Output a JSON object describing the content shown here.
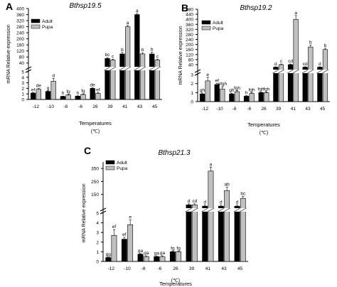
{
  "chart_data": [
    {
      "type": "bar",
      "panel_letter": "A",
      "title": "Bthsp19.5",
      "xlabel": "Temperatures",
      "xunit": "(℃)",
      "ylabel": "mRNA Relative expression",
      "categories": [
        "-12",
        "-10",
        "-8",
        "-6",
        "26",
        "39",
        "41",
        "43",
        "45"
      ],
      "legend": {
        "position": "top-left"
      },
      "axis": {
        "lower": {
          "range": [
            0,
            5
          ],
          "ticks": [
            0,
            1,
            2,
            3,
            4,
            5
          ]
        },
        "upper": {
          "range": [
            20,
            400
          ],
          "ticks": [
            40,
            80,
            120,
            160,
            200,
            240,
            280,
            320,
            360,
            400
          ]
        }
      },
      "series": [
        {
          "name": "Adult",
          "color": "#000000",
          "values": [
            1.15,
            1.45,
            0.55,
            0.6,
            2.0,
            70,
            100,
            360,
            100
          ],
          "errors": [
            0.1,
            0.1,
            0.06,
            0.06,
            0.1,
            6,
            10,
            8,
            12
          ],
          "letters": [
            "ef",
            "g",
            "h",
            "h",
            "de",
            "bc",
            "b",
            "a",
            "b"
          ]
        },
        {
          "name": "Pupa",
          "color": "#c0c0c0",
          "values": [
            1.85,
            3.3,
            0.8,
            0.9,
            1.1,
            60,
            280,
            100,
            60
          ],
          "errors": [
            0.12,
            0.5,
            0.1,
            0.1,
            0.15,
            5,
            8,
            8,
            5
          ],
          "letters": [
            "de",
            "d",
            "fg",
            "fg",
            "ef",
            "c",
            "a",
            "b",
            "c"
          ]
        }
      ]
    },
    {
      "type": "bar",
      "panel_letter": "B",
      "title": "Bthsp19.2",
      "xlabel": "Temperatures",
      "xunit": "(℃)",
      "ylabel": "mRNA Relative expression",
      "categories": [
        "-12",
        "-10",
        "-8",
        "-6",
        "26",
        "39",
        "41",
        "43",
        "45"
      ],
      "legend": {
        "position": "top-left"
      },
      "axis": {
        "lower": {
          "range": [
            0,
            3
          ],
          "ticks": [
            0,
            1,
            2,
            3
          ]
        },
        "upper": {
          "range": [
            6,
            480
          ],
          "ticks": [
            40,
            80,
            120,
            160,
            200,
            240,
            280,
            320,
            360,
            400,
            440,
            480
          ]
        }
      },
      "series": [
        {
          "name": "Adult",
          "color": "#000000",
          "values": [
            0.85,
            1.9,
            0.85,
            0.6,
            1.0,
            20,
            40,
            20,
            20
          ],
          "errors": [
            0.1,
            0.1,
            0.08,
            0.06,
            0.05,
            3,
            5,
            3,
            3
          ],
          "letters": [
            "gh",
            "ef",
            "gh",
            "h",
            "fgh",
            "d",
            "cd",
            "cd",
            "d"
          ]
        },
        {
          "name": "Pupa",
          "color": "#c0c0c0",
          "values": [
            2.3,
            1.4,
            1.1,
            0.9,
            1.0,
            40,
            400,
            180,
            160
          ],
          "errors": [
            0.4,
            0.25,
            0.1,
            0.1,
            0.08,
            5,
            30,
            15,
            10
          ],
          "letters": [
            "e",
            "efgh",
            "fgh",
            "fgh",
            "fgh",
            "c",
            "a",
            "b",
            "b"
          ]
        }
      ]
    },
    {
      "type": "bar",
      "panel_letter": "C",
      "title": "Bthsp21.3",
      "xlabel": "Temperatures",
      "xunit": "(℃)",
      "ylabel": "mRNA Relative expression",
      "categories": [
        "-12",
        "-10",
        "-8",
        "-6",
        "26",
        "39",
        "41",
        "43",
        "45"
      ],
      "legend": {
        "position": "top-left"
      },
      "axis": {
        "lower": {
          "range": [
            0,
            5
          ],
          "ticks": [
            0,
            1,
            2,
            3,
            4,
            5
          ]
        },
        "upper": {
          "range": [
            50,
            400
          ],
          "ticks": [
            150,
            250,
            350
          ]
        }
      },
      "series": [
        {
          "name": "Adult",
          "color": "#000000",
          "values": [
            0.4,
            2.3,
            0.75,
            0.5,
            1.0,
            70,
            60,
            60,
            60
          ],
          "errors": [
            0.05,
            0.2,
            0.06,
            0.05,
            0.06,
            8,
            10,
            8,
            8
          ],
          "letters": [
            "gg",
            "ef",
            "ga",
            "ga",
            "fg",
            "d",
            "d",
            "d",
            "d"
          ]
        },
        {
          "name": "Pupa",
          "color": "#c0c0c0",
          "values": [
            2.7,
            3.8,
            0.5,
            0.5,
            1.0,
            70,
            330,
            180,
            120
          ],
          "errors": [
            0.6,
            0.5,
            0.08,
            0.08,
            0.06,
            8,
            30,
            25,
            15
          ],
          "letters": [
            "ef",
            "e",
            "ga",
            "ga",
            "fg",
            "cd",
            "a",
            "ab",
            "bc"
          ]
        }
      ]
    }
  ]
}
